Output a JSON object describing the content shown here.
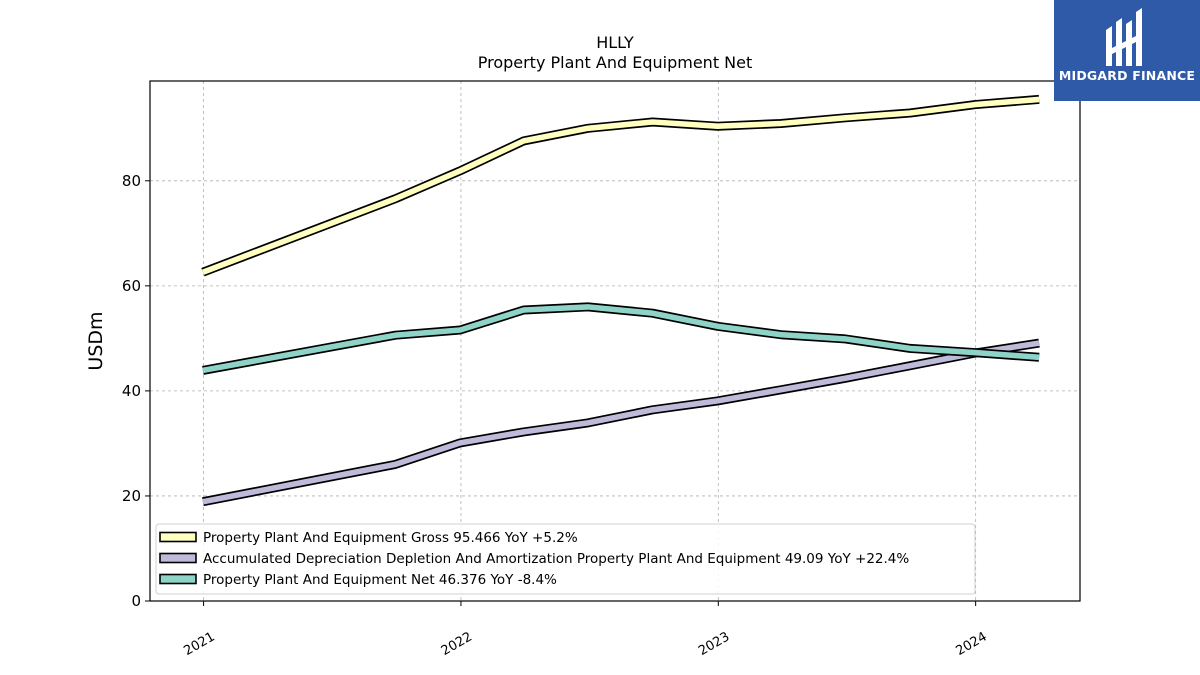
{
  "chart_data": {
    "type": "line",
    "title": "HLLY",
    "subtitle": "Property Plant And Equipment Net",
    "xlabel": "",
    "ylabel": "USDm",
    "ylim": [
      0,
      99
    ],
    "yticks": [
      0,
      20,
      40,
      60,
      80
    ],
    "xlim": [
      "2020-10-17",
      "2024-05-28"
    ],
    "xtick_labels": [
      "2021",
      "2022",
      "2023",
      "2024"
    ],
    "xticks": [
      "2021-01-01",
      "2022-01-01",
      "2023-01-01",
      "2024-01-01"
    ],
    "grid": true,
    "legend_position": "lower-left",
    "x": [
      "2020-12-31",
      "2021-09-30",
      "2021-12-31",
      "2022-03-31",
      "2022-06-30",
      "2022-09-30",
      "2022-12-31",
      "2023-03-31",
      "2023-06-30",
      "2023-09-30",
      "2023-12-31",
      "2024-03-31"
    ],
    "series": [
      {
        "name": "Property Plant And Equipment Gross",
        "legend": "Property Plant And Equipment Gross  95.466 YoY +5.2%",
        "color": "#ffffbf",
        "values": [
          62.6,
          76.6,
          81.9,
          87.6,
          90.0,
          91.2,
          90.4,
          90.9,
          92.0,
          92.9,
          94.5,
          95.5
        ]
      },
      {
        "name": "Accumulated Depreciation Depletion And Amortization Property Plant And Equipment",
        "legend": "Accumulated Depreciation Depletion And Amortization Property Plant And Equipment  49.09 YoY +22.4%",
        "color": "#bebada",
        "values": [
          18.9,
          26.0,
          30.1,
          32.2,
          33.9,
          36.4,
          38.1,
          40.2,
          42.4,
          44.8,
          47.2,
          49.1
        ]
      },
      {
        "name": "Property Plant And Equipment Net",
        "legend": "Property Plant And Equipment Net  46.376 YoY -8.4%",
        "color": "#8dd3c7",
        "values": [
          43.9,
          50.6,
          51.6,
          55.4,
          56.0,
          54.8,
          52.3,
          50.7,
          49.9,
          48.1,
          47.3,
          46.4
        ]
      }
    ]
  },
  "logo": {
    "name": "MIDGARD FINANCE",
    "color": "#2f5aa8"
  }
}
